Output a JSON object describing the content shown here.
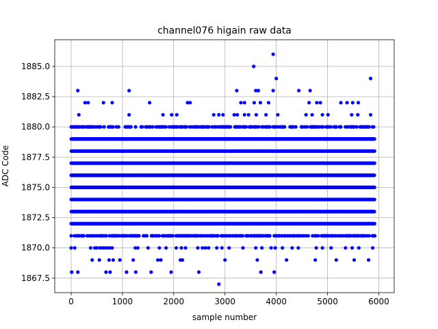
{
  "chart_data": {
    "type": "scatter",
    "title": "channel076 higain raw data",
    "xlabel": "sample number",
    "ylabel": "ADC Code",
    "xlim": [
      -320,
      6300
    ],
    "ylim": [
      1866.3,
      1887.2
    ],
    "xticks": [
      0,
      1000,
      2000,
      3000,
      4000,
      5000,
      6000
    ],
    "xtick_labels": [
      "0",
      "1000",
      "2000",
      "3000",
      "4000",
      "5000",
      "6000"
    ],
    "yticks": [
      1867.5,
      1870.0,
      1872.5,
      1875.0,
      1877.5,
      1880.0,
      1882.5,
      1885.0
    ],
    "ytick_labels": [
      "1867.5",
      "1870.0",
      "1872.5",
      "1875.0",
      "1877.5",
      "1880.0",
      "1882.5",
      "1885.0"
    ],
    "grid": true,
    "marker_color": "#0000ff",
    "n_samples": 5920,
    "dense_levels": [
      1871,
      1872,
      1873,
      1874,
      1875,
      1876,
      1877,
      1878,
      1879,
      1880
    ],
    "sparse_points": [
      {
        "x": 10,
        "y": 1868
      },
      {
        "x": 130,
        "y": 1868
      },
      {
        "x": 680,
        "y": 1868
      },
      {
        "x": 760,
        "y": 1868
      },
      {
        "x": 1080,
        "y": 1868
      },
      {
        "x": 1260,
        "y": 1868
      },
      {
        "x": 1560,
        "y": 1868
      },
      {
        "x": 1950,
        "y": 1868
      },
      {
        "x": 2490,
        "y": 1868
      },
      {
        "x": 3700,
        "y": 1868
      },
      {
        "x": 3960,
        "y": 1868
      },
      {
        "x": 2880,
        "y": 1867
      },
      {
        "x": 410,
        "y": 1869
      },
      {
        "x": 550,
        "y": 1869
      },
      {
        "x": 740,
        "y": 1869
      },
      {
        "x": 820,
        "y": 1869
      },
      {
        "x": 950,
        "y": 1869
      },
      {
        "x": 1210,
        "y": 1869
      },
      {
        "x": 1690,
        "y": 1869
      },
      {
        "x": 1750,
        "y": 1869
      },
      {
        "x": 2130,
        "y": 1869
      },
      {
        "x": 2170,
        "y": 1869
      },
      {
        "x": 3000,
        "y": 1869
      },
      {
        "x": 3630,
        "y": 1869
      },
      {
        "x": 4200,
        "y": 1869
      },
      {
        "x": 4760,
        "y": 1869
      },
      {
        "x": 5170,
        "y": 1869
      },
      {
        "x": 5520,
        "y": 1869
      },
      {
        "x": 5800,
        "y": 1869
      },
      {
        "x": 0,
        "y": 1870
      },
      {
        "x": 70,
        "y": 1870
      },
      {
        "x": 380,
        "y": 1870
      },
      {
        "x": 460,
        "y": 1870
      },
      {
        "x": 500,
        "y": 1870
      },
      {
        "x": 560,
        "y": 1870
      },
      {
        "x": 610,
        "y": 1870
      },
      {
        "x": 650,
        "y": 1870
      },
      {
        "x": 700,
        "y": 1870
      },
      {
        "x": 750,
        "y": 1870
      },
      {
        "x": 800,
        "y": 1870
      },
      {
        "x": 1250,
        "y": 1870
      },
      {
        "x": 1300,
        "y": 1870
      },
      {
        "x": 1500,
        "y": 1870
      },
      {
        "x": 1720,
        "y": 1870
      },
      {
        "x": 1850,
        "y": 1870
      },
      {
        "x": 2050,
        "y": 1870
      },
      {
        "x": 2150,
        "y": 1870
      },
      {
        "x": 2230,
        "y": 1870
      },
      {
        "x": 2470,
        "y": 1870
      },
      {
        "x": 2560,
        "y": 1870
      },
      {
        "x": 2620,
        "y": 1870
      },
      {
        "x": 2680,
        "y": 1870
      },
      {
        "x": 2840,
        "y": 1870
      },
      {
        "x": 2940,
        "y": 1870
      },
      {
        "x": 3080,
        "y": 1870
      },
      {
        "x": 3350,
        "y": 1870
      },
      {
        "x": 3600,
        "y": 1870
      },
      {
        "x": 3720,
        "y": 1870
      },
      {
        "x": 3900,
        "y": 1870
      },
      {
        "x": 3980,
        "y": 1870
      },
      {
        "x": 4120,
        "y": 1870
      },
      {
        "x": 4310,
        "y": 1870
      },
      {
        "x": 4430,
        "y": 1870
      },
      {
        "x": 4780,
        "y": 1870
      },
      {
        "x": 4900,
        "y": 1870
      },
      {
        "x": 5070,
        "y": 1870
      },
      {
        "x": 5350,
        "y": 1870
      },
      {
        "x": 5480,
        "y": 1870
      },
      {
        "x": 5610,
        "y": 1870
      },
      {
        "x": 5880,
        "y": 1870
      },
      {
        "x": 150,
        "y": 1881
      },
      {
        "x": 1130,
        "y": 1881
      },
      {
        "x": 1790,
        "y": 1881
      },
      {
        "x": 1960,
        "y": 1881
      },
      {
        "x": 2060,
        "y": 1881
      },
      {
        "x": 2780,
        "y": 1881
      },
      {
        "x": 2880,
        "y": 1881
      },
      {
        "x": 2960,
        "y": 1881
      },
      {
        "x": 3180,
        "y": 1881
      },
      {
        "x": 3240,
        "y": 1881
      },
      {
        "x": 3380,
        "y": 1881
      },
      {
        "x": 3460,
        "y": 1881
      },
      {
        "x": 3610,
        "y": 1881
      },
      {
        "x": 3800,
        "y": 1881
      },
      {
        "x": 4030,
        "y": 1881
      },
      {
        "x": 4580,
        "y": 1881
      },
      {
        "x": 4700,
        "y": 1881
      },
      {
        "x": 4900,
        "y": 1881
      },
      {
        "x": 5010,
        "y": 1881
      },
      {
        "x": 5470,
        "y": 1881
      },
      {
        "x": 5590,
        "y": 1881
      },
      {
        "x": 5840,
        "y": 1881
      },
      {
        "x": 270,
        "y": 1882
      },
      {
        "x": 330,
        "y": 1882
      },
      {
        "x": 630,
        "y": 1882
      },
      {
        "x": 800,
        "y": 1882
      },
      {
        "x": 1530,
        "y": 1882
      },
      {
        "x": 2270,
        "y": 1882
      },
      {
        "x": 2320,
        "y": 1882
      },
      {
        "x": 3310,
        "y": 1882
      },
      {
        "x": 3380,
        "y": 1882
      },
      {
        "x": 3570,
        "y": 1882
      },
      {
        "x": 3690,
        "y": 1882
      },
      {
        "x": 3850,
        "y": 1882
      },
      {
        "x": 4640,
        "y": 1882
      },
      {
        "x": 4790,
        "y": 1882
      },
      {
        "x": 4860,
        "y": 1882
      },
      {
        "x": 5260,
        "y": 1882
      },
      {
        "x": 5380,
        "y": 1882
      },
      {
        "x": 5490,
        "y": 1882
      },
      {
        "x": 5600,
        "y": 1882
      },
      {
        "x": 130,
        "y": 1883
      },
      {
        "x": 1130,
        "y": 1883
      },
      {
        "x": 3230,
        "y": 1883
      },
      {
        "x": 3600,
        "y": 1883
      },
      {
        "x": 3650,
        "y": 1883
      },
      {
        "x": 3940,
        "y": 1883
      },
      {
        "x": 4440,
        "y": 1883
      },
      {
        "x": 4660,
        "y": 1883
      },
      {
        "x": 4000,
        "y": 1884
      },
      {
        "x": 5840,
        "y": 1884
      },
      {
        "x": 3560,
        "y": 1885
      },
      {
        "x": 3940,
        "y": 1886
      }
    ]
  }
}
